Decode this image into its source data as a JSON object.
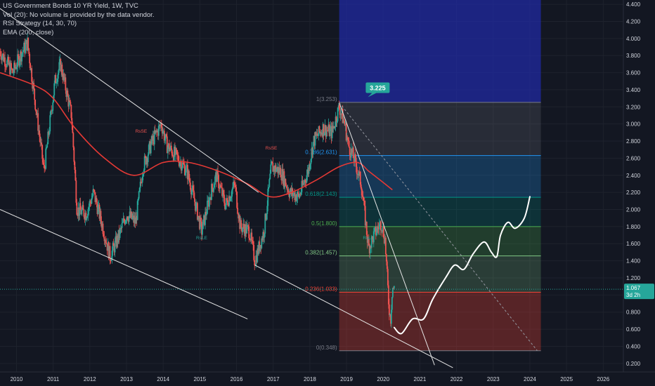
{
  "legend": {
    "title": "US Government Bonds 10 YR Yield, 1W, TVC",
    "vol": "Vol (20): No volume is provided by the data vendor.",
    "rsi": "RSI Strategy (14, 30, 70)",
    "ema": "EMA (200, close)"
  },
  "price_badge": {
    "value": "1.067",
    "countdown": "3d 2h"
  },
  "callout": {
    "text": "3.225"
  },
  "colors": {
    "background": "#131722",
    "grid": "#1e222d",
    "axis_text": "#d1d4dc",
    "up_candle": "#26a69a",
    "down_candle": "#ef5350",
    "ema": "#e53935",
    "trendline": "#e6e6e6",
    "projection": "#ffffff",
    "callout": "#26a69a",
    "price_line": "#26a69a"
  },
  "chart_data": {
    "type": "candlestick",
    "title": "US Government Bonds 10 YR Yield, 1W, TVC",
    "x_ticks": [
      "2010",
      "2011",
      "2012",
      "2013",
      "2014",
      "2015",
      "2016",
      "2017",
      "2018",
      "2019",
      "2020",
      "2021",
      "2022",
      "2023",
      "2024",
      "2025",
      "2026"
    ],
    "y_ticks": [
      "0.200",
      "0.400",
      "0.600",
      "0.800",
      "1.000",
      "1.200",
      "1.400",
      "1.600",
      "1.800",
      "2.000",
      "2.200",
      "2.400",
      "2.600",
      "2.800",
      "3.000",
      "3.200",
      "3.400",
      "3.600",
      "3.800",
      "4.000",
      "4.200",
      "4.400"
    ],
    "ylim": [
      0.1,
      4.45
    ],
    "xlim": [
      2009.55,
      2026.55
    ],
    "grid": true,
    "price_series": [
      {
        "x": 2009.55,
        "y": 3.85
      },
      {
        "x": 2009.9,
        "y": 3.6
      },
      {
        "x": 2010.1,
        "y": 3.8
      },
      {
        "x": 2010.3,
        "y": 3.95
      },
      {
        "x": 2010.6,
        "y": 2.95
      },
      {
        "x": 2010.75,
        "y": 2.45
      },
      {
        "x": 2011.05,
        "y": 3.5
      },
      {
        "x": 2011.2,
        "y": 3.7
      },
      {
        "x": 2011.5,
        "y": 3.1
      },
      {
        "x": 2011.65,
        "y": 2.0
      },
      {
        "x": 2011.9,
        "y": 1.95
      },
      {
        "x": 2012.1,
        "y": 2.2
      },
      {
        "x": 2012.35,
        "y": 1.8
      },
      {
        "x": 2012.55,
        "y": 1.45
      },
      {
        "x": 2012.8,
        "y": 1.7
      },
      {
        "x": 2013.0,
        "y": 1.95
      },
      {
        "x": 2013.25,
        "y": 1.85
      },
      {
        "x": 2013.45,
        "y": 2.5
      },
      {
        "x": 2013.7,
        "y": 2.8
      },
      {
        "x": 2013.95,
        "y": 3.0
      },
      {
        "x": 2014.1,
        "y": 2.75
      },
      {
        "x": 2014.4,
        "y": 2.6
      },
      {
        "x": 2014.65,
        "y": 2.45
      },
      {
        "x": 2014.8,
        "y": 2.2
      },
      {
        "x": 2015.05,
        "y": 1.75
      },
      {
        "x": 2015.3,
        "y": 2.2
      },
      {
        "x": 2015.45,
        "y": 2.4
      },
      {
        "x": 2015.7,
        "y": 2.05
      },
      {
        "x": 2015.95,
        "y": 2.3
      },
      {
        "x": 2016.1,
        "y": 1.8
      },
      {
        "x": 2016.35,
        "y": 1.75
      },
      {
        "x": 2016.5,
        "y": 1.4
      },
      {
        "x": 2016.75,
        "y": 1.75
      },
      {
        "x": 2016.95,
        "y": 2.5
      },
      {
        "x": 2017.2,
        "y": 2.45
      },
      {
        "x": 2017.45,
        "y": 2.2
      },
      {
        "x": 2017.7,
        "y": 2.15
      },
      {
        "x": 2017.95,
        "y": 2.45
      },
      {
        "x": 2018.1,
        "y": 2.8
      },
      {
        "x": 2018.35,
        "y": 2.95
      },
      {
        "x": 2018.6,
        "y": 2.9
      },
      {
        "x": 2018.8,
        "y": 3.2
      },
      {
        "x": 2018.95,
        "y": 3.0
      },
      {
        "x": 2019.05,
        "y": 2.75
      },
      {
        "x": 2019.2,
        "y": 2.6
      },
      {
        "x": 2019.4,
        "y": 2.3
      },
      {
        "x": 2019.6,
        "y": 1.55
      },
      {
        "x": 2019.75,
        "y": 1.7
      },
      {
        "x": 2019.95,
        "y": 1.85
      },
      {
        "x": 2020.05,
        "y": 1.65
      },
      {
        "x": 2020.15,
        "y": 0.9
      },
      {
        "x": 2020.2,
        "y": 0.7
      },
      {
        "x": 2020.25,
        "y": 1.1
      },
      {
        "x": 2020.3,
        "y": 1.067
      }
    ],
    "series": [
      {
        "type": "line",
        "values": [
          {
            "x": 2009.55,
            "y": 3.6
          },
          {
            "x": 2010.5,
            "y": 3.45
          },
          {
            "x": 2011.0,
            "y": 3.3
          },
          {
            "x": 2011.6,
            "y": 2.95
          },
          {
            "x": 2012.4,
            "y": 2.6
          },
          {
            "x": 2013.2,
            "y": 2.4
          },
          {
            "x": 2014.0,
            "y": 2.55
          },
          {
            "x": 2014.7,
            "y": 2.55
          },
          {
            "x": 2015.5,
            "y": 2.45
          },
          {
            "x": 2016.3,
            "y": 2.3
          },
          {
            "x": 2016.9,
            "y": 2.15
          },
          {
            "x": 2017.5,
            "y": 2.2
          },
          {
            "x": 2018.2,
            "y": 2.35
          },
          {
            "x": 2018.8,
            "y": 2.5
          },
          {
            "x": 2019.3,
            "y": 2.55
          },
          {
            "x": 2019.6,
            "y": 2.45
          },
          {
            "x": 2019.9,
            "y": 2.35
          },
          {
            "x": 2020.25,
            "y": 2.23
          }
        ]
      },
      {
        "type": "projection",
        "values": [
          {
            "x": 2020.3,
            "y": 0.62
          },
          {
            "x": 2020.5,
            "y": 0.55
          },
          {
            "x": 2020.8,
            "y": 0.72
          },
          {
            "x": 2021.1,
            "y": 0.72
          },
          {
            "x": 2021.35,
            "y": 0.95
          },
          {
            "x": 2021.7,
            "y": 1.2
          },
          {
            "x": 2021.95,
            "y": 1.35
          },
          {
            "x": 2022.2,
            "y": 1.3
          },
          {
            "x": 2022.45,
            "y": 1.48
          },
          {
            "x": 2022.75,
            "y": 1.62
          },
          {
            "x": 2022.95,
            "y": 1.5
          },
          {
            "x": 2023.1,
            "y": 1.45
          },
          {
            "x": 2023.2,
            "y": 1.7
          },
          {
            "x": 2023.4,
            "y": 1.85
          },
          {
            "x": 2023.6,
            "y": 1.78
          },
          {
            "x": 2023.85,
            "y": 1.9
          },
          {
            "x": 2024.0,
            "y": 2.15
          }
        ]
      }
    ],
    "trendlines": [
      {
        "x1": 2009.55,
        "y1": 4.35,
        "x2": 2016.6,
        "y2": 2.2
      },
      {
        "x1": 2009.55,
        "y1": 2.0,
        "x2": 2016.3,
        "y2": 0.72
      },
      {
        "x1": 2016.5,
        "y1": 1.35,
        "x2": 2021.9,
        "y2": 0.15
      },
      {
        "x1": 2018.8,
        "y1": 3.25,
        "x2": 2021.4,
        "y2": 0.18
      },
      {
        "x1": 2018.8,
        "y1": 3.25,
        "x2": 2024.2,
        "y2": 0.35,
        "dashed": true
      }
    ],
    "fib": {
      "x_start": 2018.8,
      "x_end": 2024.3,
      "levels": [
        {
          "label": "1(3.253)",
          "value": 3.253,
          "color": "#787b86",
          "fill": "rgba(120,123,134,0.22)"
        },
        {
          "label": "0.786(2.631)",
          "value": 2.631,
          "color": "#2196f3",
          "fill": "rgba(33,150,243,0.25)"
        },
        {
          "label": "0.618(2.143)",
          "value": 2.143,
          "color": "#009688",
          "fill": "rgba(0,150,136,0.22)"
        },
        {
          "label": "0.5(1.800)",
          "value": 1.8,
          "color": "#4caf50",
          "fill": "rgba(76,175,80,0.25)"
        },
        {
          "label": "0.382(1.457)",
          "value": 1.457,
          "color": "#81c784",
          "fill": "rgba(129,199,132,0.22)"
        },
        {
          "label": "0.236(1.033)",
          "value": 1.033,
          "color": "#f44336",
          "fill": "rgba(244,67,54,0.3)"
        },
        {
          "label": "0(0.348)",
          "value": 0.348,
          "color": "#787b86",
          "fill": "none"
        }
      ],
      "top_band": {
        "from": 3.253,
        "to": 4.45,
        "fill": "rgba(33,43,170,0.7)",
        "from2": 4.2,
        "fill2": "rgba(40,55,160,0.65)"
      }
    },
    "signals": [
      {
        "text": "RsLE",
        "x": 2015.05,
        "y": 1.65,
        "color": "#26a69a"
      },
      {
        "text": "RsLE",
        "x": 2019.6,
        "y": 1.65,
        "color": "#26a69a"
      },
      {
        "text": "RsSE",
        "x": 2013.4,
        "y": 2.9,
        "color": "#ef5350"
      },
      {
        "text": "RsSE",
        "x": 2016.95,
        "y": 2.7,
        "color": "#ef5350"
      }
    ]
  }
}
